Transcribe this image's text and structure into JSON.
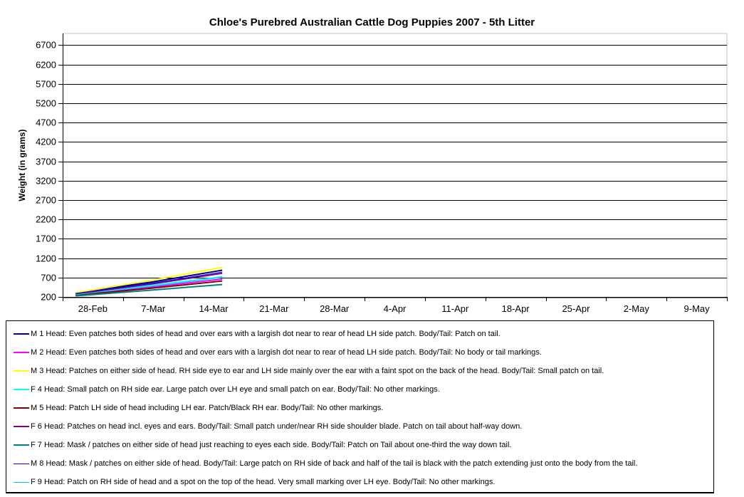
{
  "chart_data": {
    "type": "line",
    "title": "Chloe's Purebred Australian Cattle Dog Puppies 2007 - 5th Litter",
    "ylabel": "Weight (in grams)",
    "xlabel": "",
    "grid": true,
    "legend_position": "bottom",
    "y_axis": {
      "min": 200,
      "max": 7000,
      "tick_step": 500,
      "ticks": [
        200,
        700,
        1200,
        1700,
        2200,
        2700,
        3200,
        3700,
        4200,
        4700,
        5200,
        5700,
        6200,
        6700
      ]
    },
    "x_axis": {
      "categories": [
        "28-Feb",
        "7-Mar",
        "14-Mar",
        "21-Mar",
        "28-Mar",
        "4-Apr",
        "11-Apr",
        "18-Apr",
        "25-Apr",
        "2-May",
        "9-May"
      ],
      "days_per_category": 7
    },
    "x_points": {
      "approx_dates": [
        "26-Feb",
        "7-Mar",
        "15-Mar"
      ],
      "day_positions": [
        1.5,
        10.5,
        18.5
      ]
    },
    "series": [
      {
        "name": "M 1",
        "color": "#000080",
        "line_width": 2,
        "values": [
          300,
          590,
          890
        ],
        "label": "M 1 Head: Even patches both sides of head and over ears with a largish dot near to rear of head LH side patch. Body/Tail: Patch on tail."
      },
      {
        "name": "M 2",
        "color": "#FF00FF",
        "line_width": 2,
        "values": [
          255,
          460,
          660
        ],
        "label": "M 2 Head: Even patches both sides of head and over ears with a largish dot near to rear of head LH side patch. Body/Tail: No body or tail markings."
      },
      {
        "name": "M 3",
        "color": "#FFFF00",
        "line_width": 2,
        "values": [
          310,
          640,
          960
        ],
        "label": "M 3 Head: Patches on either side of head. RH side eye to ear and LH side mainly over the ear with a faint spot on the back of the head. Body/Tail: Small patch on tail."
      },
      {
        "name": "F 4",
        "color": "#00FFFF",
        "line_width": 2,
        "values": [
          270,
          500,
          720
        ],
        "label": "F 4 Head: Small patch on RH side ear. Large patch over LH eye and small patch on ear. Body/Tail: No other markings."
      },
      {
        "name": "M 5",
        "color": "#800000",
        "line_width": 2,
        "values": [
          240,
          430,
          610
        ],
        "label": "M 5 Head: Patch LH side of head including LH ear. Patch/Black RH ear. Body/Tail: No other markings."
      },
      {
        "name": "F 6",
        "color": "#800080",
        "line_width": 2,
        "values": [
          280,
          540,
          810
        ],
        "label": "F 6 Head: Patches on head incl. eyes and ears. Body/Tail: Small patch under/near RH side shoulder blade. Patch on tail about half-way down."
      },
      {
        "name": "F 7",
        "color": "#008080",
        "line_width": 2,
        "values": [
          225,
          380,
          520
        ],
        "label": "F 7 Head: Mask / patches on either side of head just reaching to eyes each side. Body/Tail: Patch on Tail about one-third the way down tail."
      },
      {
        "name": "M 8",
        "color": "#0000FF",
        "line_width": 1,
        "values": [
          290,
          560,
          840
        ],
        "label": "M 8 Head: Mask / patches on either side of head. Body/Tail: Large patch on RH side of back and half of the tail is black with the patch extending just onto the body from the tail."
      },
      {
        "name": "F 9",
        "color": "#00CCFF",
        "line_width": 1,
        "values": [
          260,
          480,
          700
        ],
        "label": "F 9 Head: Patch on RH side of head and a spot on the top of the head. Very small marking over LH eye. Body/Tail: No other markings."
      }
    ],
    "colors": {
      "axis": "#000000",
      "gridline": "#000000",
      "plot_border": "#C0C0C0",
      "background": "#FFFFFF"
    }
  }
}
